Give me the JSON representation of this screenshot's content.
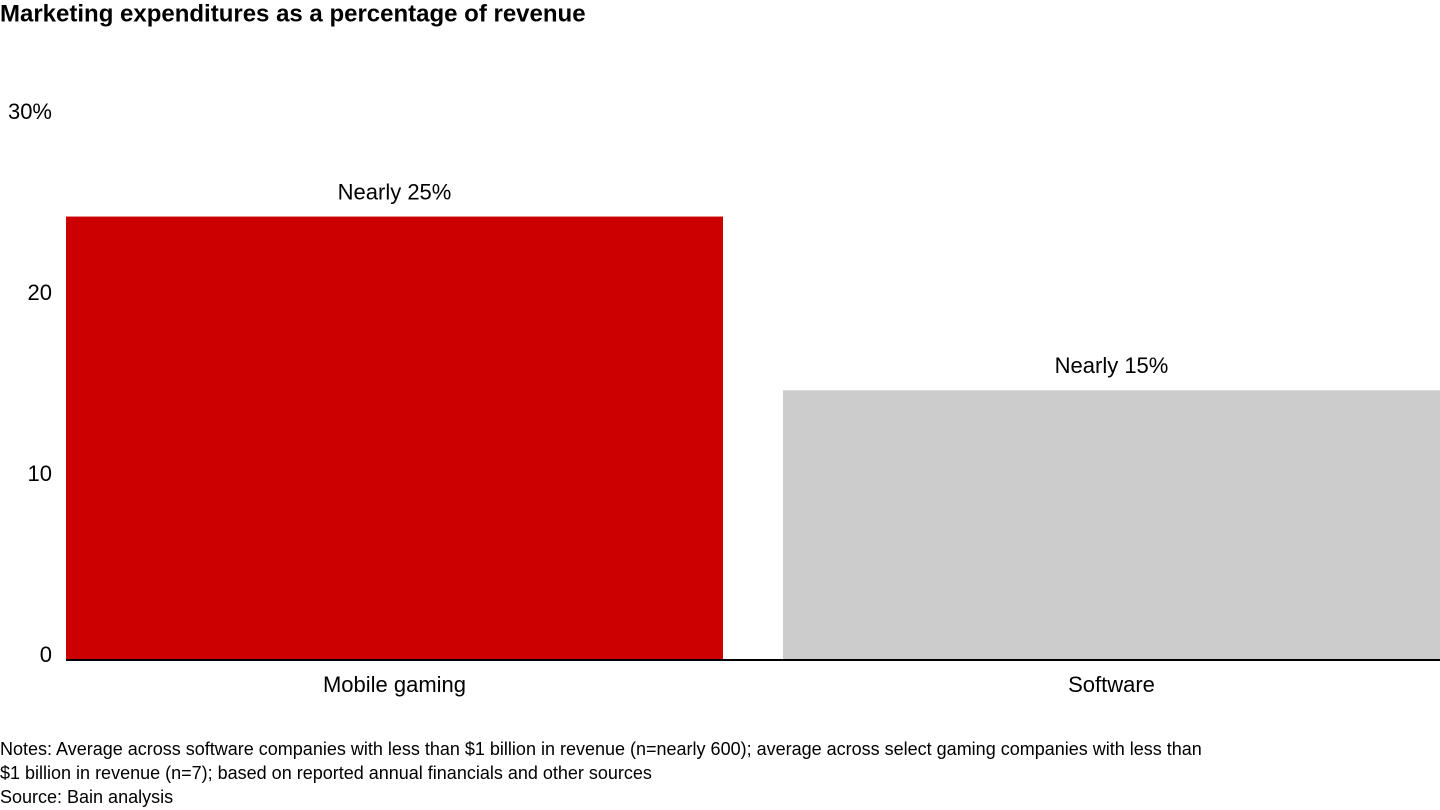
{
  "chart_data": {
    "type": "bar",
    "title": "Marketing expenditures as a percentage of revenue",
    "categories": [
      "Mobile gaming",
      "Software"
    ],
    "values": [
      24.5,
      14.9
    ],
    "value_labels": [
      "Nearly 25%",
      "Nearly 15%"
    ],
    "colors": [
      "#cc0000",
      "#cccccc"
    ],
    "ylim": [
      0,
      30
    ],
    "yticks": [
      0,
      10,
      20,
      {
        "value": 30,
        "label": "30%"
      }
    ],
    "grid": false,
    "notes": [
      "Notes: Average across software companies with less than $1 billion in revenue (n=nearly 600); average across select gaming companies with less than",
      "$1 billion in revenue (n=7); based on reported annual financials and other sources"
    ],
    "source": "Source: Bain analysis"
  }
}
